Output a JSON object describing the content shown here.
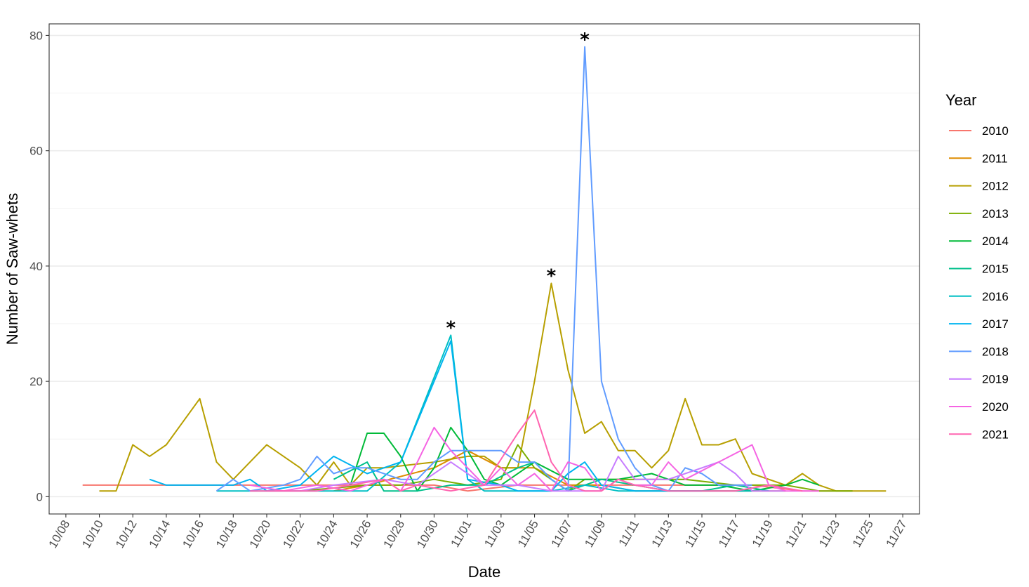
{
  "chart_data": {
    "type": "line",
    "title": "",
    "xlabel": "Date",
    "ylabel": "Number of Saw-whets",
    "x_axis_type": "date",
    "xlim": [
      "10/07",
      "11/28"
    ],
    "ylim": [
      -3,
      82
    ],
    "y_ticks": [
      0,
      20,
      40,
      60,
      80
    ],
    "x_ticks": [
      "10/08",
      "10/10",
      "10/12",
      "10/14",
      "10/16",
      "10/18",
      "10/20",
      "10/22",
      "10/24",
      "10/26",
      "10/28",
      "10/30",
      "11/01",
      "11/03",
      "11/05",
      "11/07",
      "11/09",
      "11/11",
      "11/13",
      "11/15",
      "11/17",
      "11/19",
      "11/21",
      "11/23",
      "11/25",
      "11/27"
    ],
    "grid": true,
    "legend": {
      "title": "Year",
      "position": "right"
    },
    "annotations": [
      {
        "text": "*",
        "x": "10/31",
        "y": 28
      },
      {
        "text": "*",
        "x": "11/06",
        "y": 37
      },
      {
        "text": "*",
        "x": "11/08",
        "y": 78
      }
    ],
    "series": [
      {
        "name": "2010",
        "color": "#F8766D",
        "points": [
          [
            "10/09",
            2
          ],
          [
            "10/17",
            2
          ],
          [
            "10/22",
            2
          ],
          [
            "10/30",
            2
          ],
          [
            "11/01",
            1
          ],
          [
            "11/04",
            2
          ],
          [
            "11/08",
            2
          ],
          [
            "11/10",
            2
          ],
          [
            "11/14",
            2
          ],
          [
            "11/18",
            2
          ],
          [
            "11/21",
            1
          ],
          [
            "11/24",
            1
          ]
        ]
      },
      {
        "name": "2011",
        "color": "#DE8C00",
        "points": [
          [
            "10/24",
            1
          ],
          [
            "10/26",
            2
          ],
          [
            "10/30",
            5
          ],
          [
            "11/01",
            8
          ],
          [
            "11/03",
            5
          ],
          [
            "11/05",
            5
          ],
          [
            "11/07",
            2
          ],
          [
            "11/09",
            2
          ],
          [
            "11/11",
            1
          ],
          [
            "11/14",
            1
          ],
          [
            "11/17",
            1
          ],
          [
            "11/20",
            1
          ]
        ]
      },
      {
        "name": "2012",
        "color": "#B79F00",
        "points": [
          [
            "10/10",
            1
          ],
          [
            "10/11",
            1
          ],
          [
            "10/12",
            9
          ],
          [
            "10/13",
            7
          ],
          [
            "10/14",
            9
          ],
          [
            "10/16",
            17
          ],
          [
            "10/17",
            6
          ],
          [
            "10/18",
            3
          ],
          [
            "10/20",
            9
          ],
          [
            "10/22",
            5
          ],
          [
            "10/23",
            2
          ],
          [
            "10/24",
            6
          ],
          [
            "10/25",
            2
          ],
          [
            "10/26",
            5
          ],
          [
            "10/27",
            5
          ],
          [
            "10/30",
            6
          ],
          [
            "11/01",
            7
          ],
          [
            "11/02",
            7
          ],
          [
            "11/03",
            5
          ],
          [
            "11/04",
            5
          ],
          [
            "11/05",
            20
          ],
          [
            "11/06",
            37
          ],
          [
            "11/07",
            22
          ],
          [
            "11/08",
            11
          ],
          [
            "11/09",
            13
          ],
          [
            "11/10",
            8
          ],
          [
            "11/11",
            8
          ],
          [
            "11/12",
            5
          ],
          [
            "11/13",
            8
          ],
          [
            "11/14",
            17
          ],
          [
            "11/15",
            9
          ],
          [
            "11/16",
            9
          ],
          [
            "11/17",
            10
          ],
          [
            "11/18",
            4
          ],
          [
            "11/20",
            2
          ],
          [
            "11/21",
            4
          ],
          [
            "11/22",
            2
          ],
          [
            "11/23",
            1
          ],
          [
            "11/26",
            1
          ]
        ]
      },
      {
        "name": "2013",
        "color": "#7CAE00",
        "points": [
          [
            "10/22",
            1
          ],
          [
            "10/26",
            2
          ],
          [
            "10/28",
            2
          ],
          [
            "10/30",
            3
          ],
          [
            "11/01",
            2
          ],
          [
            "11/03",
            3
          ],
          [
            "11/04",
            9
          ],
          [
            "11/05",
            5
          ],
          [
            "11/07",
            1
          ],
          [
            "11/08",
            3
          ],
          [
            "11/10",
            3
          ],
          [
            "11/12",
            3
          ],
          [
            "11/14",
            3
          ],
          [
            "11/17",
            2
          ],
          [
            "11/20",
            2
          ],
          [
            "11/22",
            1
          ],
          [
            "11/24",
            1
          ]
        ]
      },
      {
        "name": "2014",
        "color": "#00BA38",
        "points": [
          [
            "10/25",
            2
          ],
          [
            "10/26",
            11
          ],
          [
            "10/27",
            11
          ],
          [
            "10/28",
            7
          ],
          [
            "10/29",
            1
          ],
          [
            "10/30",
            5
          ],
          [
            "10/31",
            12
          ],
          [
            "11/01",
            8
          ],
          [
            "11/02",
            3
          ],
          [
            "11/03",
            2
          ],
          [
            "11/05",
            6
          ],
          [
            "11/07",
            3
          ],
          [
            "11/10",
            3
          ],
          [
            "11/12",
            4
          ],
          [
            "11/14",
            2
          ],
          [
            "11/16",
            2
          ],
          [
            "11/18",
            1
          ],
          [
            "11/20",
            2
          ],
          [
            "11/21",
            3
          ],
          [
            "11/22",
            2
          ]
        ]
      },
      {
        "name": "2015",
        "color": "#00C08B",
        "points": [
          [
            "10/24",
            3
          ],
          [
            "10/26",
            6
          ],
          [
            "10/27",
            1
          ],
          [
            "10/29",
            1
          ],
          [
            "10/31",
            2
          ],
          [
            "11/02",
            2
          ],
          [
            "11/04",
            5
          ],
          [
            "11/05",
            6
          ],
          [
            "11/06",
            3
          ],
          [
            "11/07",
            1
          ],
          [
            "11/09",
            3
          ],
          [
            "11/11",
            2
          ],
          [
            "11/13",
            1
          ],
          [
            "11/15",
            1
          ],
          [
            "11/17",
            2
          ],
          [
            "11/19",
            1
          ]
        ]
      },
      {
        "name": "2016",
        "color": "#00BFC4",
        "points": [
          [
            "10/17",
            1
          ],
          [
            "10/19",
            1
          ],
          [
            "10/22",
            1
          ],
          [
            "10/26",
            1
          ],
          [
            "10/28",
            6
          ],
          [
            "10/31",
            28
          ],
          [
            "11/01",
            3
          ],
          [
            "11/02",
            1
          ],
          [
            "11/04",
            1
          ],
          [
            "11/06",
            1
          ],
          [
            "11/08",
            2
          ],
          [
            "11/10",
            1
          ],
          [
            "11/12",
            1
          ],
          [
            "11/14",
            1
          ],
          [
            "11/16",
            1
          ],
          [
            "11/18",
            1
          ]
        ]
      },
      {
        "name": "2017",
        "color": "#00B4F0",
        "points": [
          [
            "10/13",
            3
          ],
          [
            "10/14",
            2
          ],
          [
            "10/16",
            2
          ],
          [
            "10/18",
            2
          ],
          [
            "10/19",
            3
          ],
          [
            "10/20",
            1
          ],
          [
            "10/22",
            2
          ],
          [
            "10/24",
            7
          ],
          [
            "10/26",
            4
          ],
          [
            "10/28",
            6
          ],
          [
            "10/31",
            27
          ],
          [
            "11/01",
            3
          ],
          [
            "11/03",
            2
          ],
          [
            "11/04",
            1
          ],
          [
            "11/06",
            1
          ],
          [
            "11/07",
            4
          ],
          [
            "11/08",
            6
          ],
          [
            "11/09",
            2
          ],
          [
            "11/11",
            1
          ],
          [
            "11/13",
            1
          ],
          [
            "11/15",
            1
          ]
        ]
      },
      {
        "name": "2018",
        "color": "#619CFF",
        "points": [
          [
            "10/17",
            1
          ],
          [
            "10/18",
            3
          ],
          [
            "10/19",
            1
          ],
          [
            "10/21",
            2
          ],
          [
            "10/22",
            3
          ],
          [
            "10/23",
            7
          ],
          [
            "10/24",
            4
          ],
          [
            "10/25",
            5
          ],
          [
            "10/26",
            5
          ],
          [
            "10/28",
            3
          ],
          [
            "10/29",
            3
          ],
          [
            "10/30",
            6
          ],
          [
            "10/31",
            8
          ],
          [
            "11/01",
            8
          ],
          [
            "11/02",
            8
          ],
          [
            "11/03",
            8
          ],
          [
            "11/04",
            6
          ],
          [
            "11/05",
            6
          ],
          [
            "11/06",
            3
          ],
          [
            "11/07",
            1
          ],
          [
            "11/08",
            78
          ],
          [
            "11/09",
            20
          ],
          [
            "11/10",
            10
          ],
          [
            "11/11",
            5
          ],
          [
            "11/12",
            2
          ],
          [
            "11/13",
            1
          ],
          [
            "11/14",
            5
          ],
          [
            "11/15",
            4
          ],
          [
            "11/16",
            2
          ],
          [
            "11/18",
            2
          ]
        ]
      },
      {
        "name": "2019",
        "color": "#C77CFF",
        "points": [
          [
            "10/20",
            1
          ],
          [
            "10/22",
            1
          ],
          [
            "10/24",
            2
          ],
          [
            "10/27",
            3
          ],
          [
            "10/29",
            2
          ],
          [
            "10/31",
            6
          ],
          [
            "11/02",
            2
          ],
          [
            "11/04",
            2
          ],
          [
            "11/06",
            1
          ],
          [
            "11/08",
            1
          ],
          [
            "11/09",
            1
          ],
          [
            "11/10",
            7
          ],
          [
            "11/11",
            3
          ],
          [
            "11/13",
            3
          ],
          [
            "11/15",
            5
          ],
          [
            "11/16",
            6
          ],
          [
            "11/17",
            4
          ],
          [
            "11/18",
            1
          ],
          [
            "11/20",
            1
          ]
        ]
      },
      {
        "name": "2020",
        "color": "#F564E3",
        "points": [
          [
            "10/19",
            2
          ],
          [
            "10/21",
            1
          ],
          [
            "10/23",
            2
          ],
          [
            "10/25",
            1
          ],
          [
            "10/27",
            3
          ],
          [
            "10/28",
            1
          ],
          [
            "10/29",
            6
          ],
          [
            "10/30",
            12
          ],
          [
            "10/31",
            8
          ],
          [
            "11/02",
            2
          ],
          [
            "11/03",
            5
          ],
          [
            "11/04",
            2
          ],
          [
            "11/05",
            4
          ],
          [
            "11/06",
            1
          ],
          [
            "11/07",
            6
          ],
          [
            "11/08",
            5
          ],
          [
            "11/09",
            1
          ],
          [
            "11/10",
            3
          ],
          [
            "11/11",
            2
          ],
          [
            "11/12",
            2
          ],
          [
            "11/13",
            6
          ],
          [
            "11/14",
            3
          ],
          [
            "11/16",
            6
          ],
          [
            "11/18",
            9
          ],
          [
            "11/19",
            2
          ],
          [
            "11/20",
            1
          ],
          [
            "11/22",
            1
          ]
        ]
      },
      {
        "name": "2021",
        "color": "#FF64B0",
        "points": [
          [
            "10/19",
            1
          ],
          [
            "10/21",
            1
          ],
          [
            "10/23",
            1
          ],
          [
            "10/25",
            2
          ],
          [
            "10/27",
            3
          ],
          [
            "10/28",
            1
          ],
          [
            "10/29",
            2
          ],
          [
            "10/31",
            1
          ],
          [
            "11/02",
            2
          ],
          [
            "11/04",
            11
          ],
          [
            "11/05",
            15
          ],
          [
            "11/06",
            6
          ],
          [
            "11/07",
            2
          ],
          [
            "11/08",
            1
          ],
          [
            "11/09",
            1
          ],
          [
            "11/10",
            3
          ],
          [
            "11/11",
            2
          ],
          [
            "11/13",
            1
          ],
          [
            "11/15",
            1
          ],
          [
            "11/17",
            1
          ],
          [
            "11/19",
            2
          ],
          [
            "11/21",
            1
          ]
        ]
      }
    ]
  }
}
